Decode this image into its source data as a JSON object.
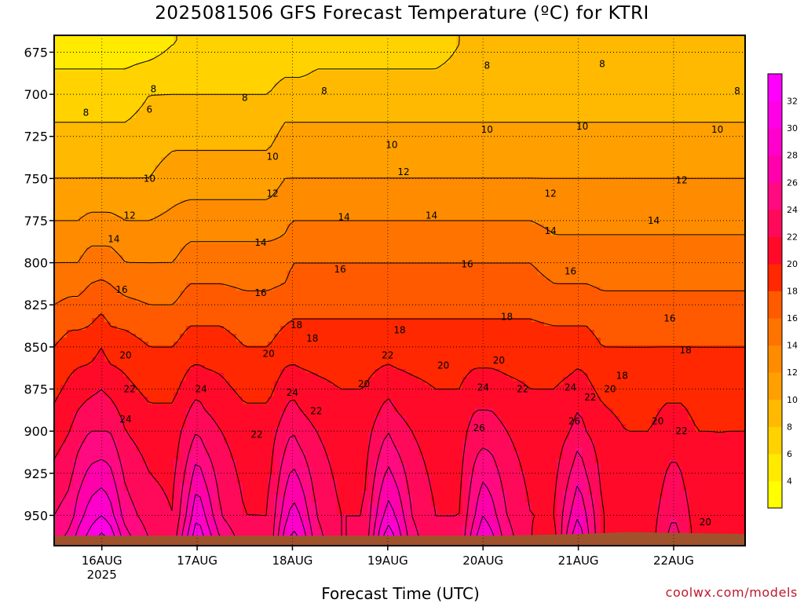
{
  "title": "2025081506 GFS Forecast Temperature (ºC) for KTRI",
  "credit": "coolwx.com/models",
  "colors": {
    "ground": "#a0522d",
    "grid": "#000000",
    "scale": [
      {
        "min": 2,
        "color": "#ffff00"
      },
      {
        "min": 4,
        "color": "#ffea00"
      },
      {
        "min": 6,
        "color": "#ffd200"
      },
      {
        "min": 8,
        "color": "#ffb900"
      },
      {
        "min": 10,
        "color": "#ffa000"
      },
      {
        "min": 12,
        "color": "#ff8c00"
      },
      {
        "min": 14,
        "color": "#ff7300"
      },
      {
        "min": 16,
        "color": "#ff5a00"
      },
      {
        "min": 18,
        "color": "#ff2800"
      },
      {
        "min": 20,
        "color": "#ff0a28"
      },
      {
        "min": 22,
        "color": "#ff0a5a"
      },
      {
        "min": 24,
        "color": "#ff0a80"
      },
      {
        "min": 26,
        "color": "#ff00aa"
      },
      {
        "min": 28,
        "color": "#ff00cc"
      },
      {
        "min": 30,
        "color": "#ff00e6"
      },
      {
        "min": 32,
        "color": "#ff00ff"
      }
    ]
  },
  "chart_data": {
    "type": "heatmap",
    "title": "2025081506 GFS Forecast Temperature (ºC) for KTRI",
    "xlabel": "Forecast Time (UTC)",
    "ylabel": "",
    "variable": "Temperature (ºC)",
    "station": "KTRI",
    "model": "GFS",
    "run": "2025081506",
    "y_axis": {
      "label": "Pressure (hPa)",
      "ticks": [
        675,
        700,
        725,
        750,
        775,
        800,
        825,
        850,
        875,
        900,
        925,
        950
      ],
      "range": [
        665,
        968
      ],
      "inverted": true
    },
    "x_axis": {
      "range_hours": [
        6,
        180
      ],
      "ticks": [
        {
          "hour": 18,
          "label": "16AUG",
          "sublabel": "2025"
        },
        {
          "hour": 42,
          "label": "17AUG",
          "sublabel": ""
        },
        {
          "hour": 66,
          "label": "18AUG",
          "sublabel": ""
        },
        {
          "hour": 90,
          "label": "19AUG",
          "sublabel": ""
        },
        {
          "hour": 114,
          "label": "20AUG",
          "sublabel": ""
        },
        {
          "hour": 138,
          "label": "21AUG",
          "sublabel": ""
        },
        {
          "hour": 162,
          "label": "22AUG",
          "sublabel": ""
        }
      ]
    },
    "colorbar": {
      "ticks": [
        4,
        6,
        8,
        10,
        12,
        14,
        16,
        18,
        20,
        22,
        24,
        26,
        28,
        30,
        32
      ]
    },
    "contour_interval": 2,
    "levels_hpa": [
      670,
      700,
      750,
      800,
      850,
      900,
      950,
      965
    ],
    "profile_hours": [
      6,
      10,
      12,
      15,
      18,
      20,
      24,
      30,
      36,
      40,
      42,
      44,
      48,
      54,
      60,
      64,
      66,
      68,
      72,
      78,
      84,
      88,
      90,
      92,
      96,
      102,
      108,
      112,
      114,
      116,
      120,
      126,
      132,
      136,
      138,
      140,
      144,
      150,
      156,
      160,
      162,
      164,
      168,
      174,
      180
    ],
    "temperature_profiles": [
      [
        5,
        7,
        10,
        14,
        18,
        21,
        24,
        25
      ],
      [
        5,
        7,
        10,
        14,
        19,
        22,
        25,
        27
      ],
      [
        5,
        7,
        10,
        14,
        19,
        23,
        27,
        29
      ],
      [
        5,
        7,
        10,
        15,
        19,
        24,
        29,
        31
      ],
      [
        5,
        7,
        10,
        15,
        20,
        24,
        30,
        33
      ],
      [
        5,
        7,
        10,
        15,
        19,
        24,
        29,
        32
      ],
      [
        5,
        7,
        10,
        14,
        19,
        22,
        25,
        27
      ],
      [
        5,
        8,
        10,
        14,
        18,
        21,
        23,
        24
      ],
      [
        6,
        8,
        11,
        14,
        18,
        21,
        22,
        23
      ],
      [
        6,
        8,
        11,
        15,
        19,
        23,
        27,
        29
      ],
      [
        6,
        8,
        11,
        15,
        19,
        24,
        30,
        32
      ],
      [
        6,
        8,
        11,
        15,
        19,
        23,
        28,
        30
      ],
      [
        6,
        8,
        11,
        15,
        19,
        22,
        24,
        26
      ],
      [
        6,
        8,
        11,
        15,
        18,
        21,
        22,
        23
      ],
      [
        6,
        8,
        11,
        15,
        18,
        21,
        22,
        22
      ],
      [
        6,
        9,
        12,
        15,
        19,
        23,
        27,
        29
      ],
      [
        6,
        9,
        12,
        16,
        19,
        24,
        29,
        31
      ],
      [
        6,
        9,
        12,
        16,
        19,
        23,
        28,
        30
      ],
      [
        7,
        9,
        12,
        16,
        19,
        22,
        24,
        25
      ],
      [
        7,
        9,
        12,
        16,
        19,
        21,
        22,
        22
      ],
      [
        7,
        9,
        12,
        16,
        19,
        21,
        22,
        22
      ],
      [
        7,
        9,
        12,
        16,
        19,
        23,
        27,
        29
      ],
      [
        7,
        9,
        12,
        16,
        19,
        24,
        29,
        32
      ],
      [
        7,
        9,
        12,
        16,
        19,
        23,
        28,
        30
      ],
      [
        7,
        9,
        12,
        16,
        19,
        22,
        24,
        25
      ],
      [
        7,
        9,
        12,
        16,
        19,
        21,
        22,
        22
      ],
      [
        8,
        9,
        12,
        16,
        19,
        21,
        22,
        22
      ],
      [
        8,
        9,
        12,
        16,
        19,
        23,
        26,
        28
      ],
      [
        8,
        9,
        12,
        16,
        19,
        23,
        28,
        30
      ],
      [
        8,
        9,
        12,
        16,
        19,
        23,
        27,
        29
      ],
      [
        8,
        9,
        12,
        16,
        19,
        22,
        24,
        25
      ],
      [
        8,
        9,
        12,
        16,
        19,
        21,
        22,
        22
      ],
      [
        8,
        9,
        12,
        15,
        19,
        21,
        22,
        21
      ],
      [
        8,
        9,
        12,
        15,
        19,
        22,
        26,
        28
      ],
      [
        8,
        9,
        12,
        15,
        19,
        23,
        28,
        30
      ],
      [
        8,
        9,
        12,
        15,
        19,
        22,
        26,
        27
      ],
      [
        8,
        9,
        12,
        15,
        18,
        21,
        22,
        22
      ],
      [
        8,
        9,
        12,
        15,
        18,
        20,
        21,
        21
      ],
      [
        8,
        9,
        12,
        15,
        18,
        20,
        21,
        21
      ],
      [
        8,
        9,
        12,
        15,
        18,
        21,
        23,
        24
      ],
      [
        8,
        9,
        12,
        15,
        18,
        21,
        24,
        25
      ],
      [
        8,
        9,
        12,
        15,
        18,
        21,
        23,
        24
      ],
      [
        8,
        9,
        12,
        15,
        18,
        20,
        21,
        21
      ],
      [
        8,
        9,
        12,
        15,
        18,
        20,
        20,
        21
      ],
      [
        8,
        9,
        12,
        15,
        18,
        20,
        22,
        22
      ]
    ],
    "surface_pressure_hpa": [
      {
        "hour": 6,
        "value": 962
      },
      {
        "hour": 120,
        "value": 962
      },
      {
        "hour": 138,
        "value": 961
      },
      {
        "hour": 150,
        "value": 960
      },
      {
        "hour": 180,
        "value": 961
      }
    ],
    "contour_labels": [
      {
        "text": "8",
        "hour": 14,
        "hpa": 711
      },
      {
        "text": "8",
        "hour": 31,
        "hpa": 697
      },
      {
        "text": "6",
        "hour": 30,
        "hpa": 709
      },
      {
        "text": "8",
        "hour": 54,
        "hpa": 702
      },
      {
        "text": "8",
        "hour": 74,
        "hpa": 698
      },
      {
        "text": "8",
        "hour": 115,
        "hpa": 683
      },
      {
        "text": "8",
        "hour": 144,
        "hpa": 682
      },
      {
        "text": "8",
        "hour": 178,
        "hpa": 698
      },
      {
        "text": "10",
        "hour": 61,
        "hpa": 737
      },
      {
        "text": "10",
        "hour": 91,
        "hpa": 730
      },
      {
        "text": "10",
        "hour": 115,
        "hpa": 721
      },
      {
        "text": "10",
        "hour": 139,
        "hpa": 719
      },
      {
        "text": "10",
        "hour": 173,
        "hpa": 721
      },
      {
        "text": "10",
        "hour": 30,
        "hpa": 750
      },
      {
        "text": "12",
        "hour": 25,
        "hpa": 772
      },
      {
        "text": "12",
        "hour": 61,
        "hpa": 759
      },
      {
        "text": "12",
        "hour": 94,
        "hpa": 746
      },
      {
        "text": "12",
        "hour": 131,
        "hpa": 759
      },
      {
        "text": "12",
        "hour": 164,
        "hpa": 751
      },
      {
        "text": "14",
        "hour": 21,
        "hpa": 786
      },
      {
        "text": "14",
        "hour": 58,
        "hpa": 788
      },
      {
        "text": "14",
        "hour": 79,
        "hpa": 773
      },
      {
        "text": "14",
        "hour": 101,
        "hpa": 772
      },
      {
        "text": "14",
        "hour": 131,
        "hpa": 781
      },
      {
        "text": "14",
        "hour": 157,
        "hpa": 775
      },
      {
        "text": "16",
        "hour": 23,
        "hpa": 816
      },
      {
        "text": "16",
        "hour": 58,
        "hpa": 818
      },
      {
        "text": "16",
        "hour": 78,
        "hpa": 804
      },
      {
        "text": "16",
        "hour": 110,
        "hpa": 801
      },
      {
        "text": "16",
        "hour": 136,
        "hpa": 805
      },
      {
        "text": "16",
        "hour": 161,
        "hpa": 833
      },
      {
        "text": "18",
        "hour": 67,
        "hpa": 837
      },
      {
        "text": "18",
        "hour": 71,
        "hpa": 845
      },
      {
        "text": "18",
        "hour": 93,
        "hpa": 840
      },
      {
        "text": "18",
        "hour": 120,
        "hpa": 832
      },
      {
        "text": "18",
        "hour": 149,
        "hpa": 867
      },
      {
        "text": "18",
        "hour": 165,
        "hpa": 852
      },
      {
        "text": "20",
        "hour": 24,
        "hpa": 855
      },
      {
        "text": "20",
        "hour": 60,
        "hpa": 854
      },
      {
        "text": "20",
        "hour": 84,
        "hpa": 872
      },
      {
        "text": "20",
        "hour": 104,
        "hpa": 861
      },
      {
        "text": "20",
        "hour": 118,
        "hpa": 858
      },
      {
        "text": "20",
        "hour": 146,
        "hpa": 875
      },
      {
        "text": "20",
        "hour": 158,
        "hpa": 894
      },
      {
        "text": "20",
        "hour": 170,
        "hpa": 954
      },
      {
        "text": "22",
        "hour": 25,
        "hpa": 875
      },
      {
        "text": "22",
        "hour": 57,
        "hpa": 902
      },
      {
        "text": "22",
        "hour": 72,
        "hpa": 888
      },
      {
        "text": "22",
        "hour": 90,
        "hpa": 855
      },
      {
        "text": "22",
        "hour": 124,
        "hpa": 875
      },
      {
        "text": "22",
        "hour": 141,
        "hpa": 880
      },
      {
        "text": "22",
        "hour": 164,
        "hpa": 900
      },
      {
        "text": "24",
        "hour": 24,
        "hpa": 893
      },
      {
        "text": "24",
        "hour": 43,
        "hpa": 875
      },
      {
        "text": "24",
        "hour": 66,
        "hpa": 877
      },
      {
        "text": "24",
        "hour": 114,
        "hpa": 874
      },
      {
        "text": "24",
        "hour": 136,
        "hpa": 874
      },
      {
        "text": "26",
        "hour": 113,
        "hpa": 898
      },
      {
        "text": "26",
        "hour": 137,
        "hpa": 894
      }
    ]
  }
}
